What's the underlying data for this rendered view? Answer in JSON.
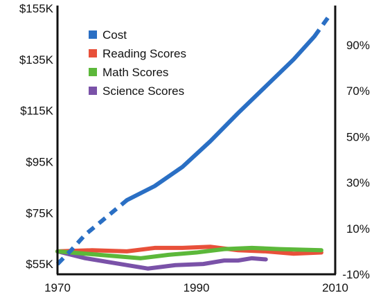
{
  "chart_data": {
    "type": "line",
    "title": "",
    "xlabel": "",
    "ylabel_left": "",
    "ylabel_right": "",
    "x_ticks": [
      "1970",
      "1990",
      "2010"
    ],
    "x_range": [
      1970,
      2010
    ],
    "left_axis": {
      "range": [
        51000,
        155000
      ],
      "ticks": [
        55000,
        75000,
        95000,
        115000,
        135000,
        155000
      ],
      "tick_labels": [
        "$55K",
        "$75K",
        "$95K",
        "$115K",
        "$135K",
        "$155K"
      ]
    },
    "right_axis": {
      "range": [
        -10,
        106
      ],
      "ticks": [
        -10,
        10,
        30,
        50,
        70,
        90
      ],
      "tick_labels": [
        "-10%",
        "10%",
        "30%",
        "50%",
        "70%",
        "90%"
      ]
    },
    "legend_position": "top-left",
    "grid": false,
    "series": [
      {
        "name": "Cost",
        "color": "#2a6fc4",
        "axis": "left",
        "x": [
          1970,
          1972,
          1974,
          1976,
          1978,
          1980,
          1984,
          1988,
          1992,
          1996,
          2000,
          2004,
          2007,
          2009
        ],
        "values": [
          55000,
          60500,
          66500,
          71000,
          75500,
          80000,
          85500,
          93000,
          103000,
          114000,
          124500,
          135000,
          144000,
          151500
        ],
        "dashed_segments": [
          [
            1970,
            1980
          ],
          [
            2007,
            2009
          ]
        ]
      },
      {
        "name": "Reading Scores",
        "color": "#e8503a",
        "axis": "right",
        "x": [
          1970,
          1975,
          1980,
          1984,
          1988,
          1992,
          1996,
          2000,
          2004,
          2008
        ],
        "values": [
          0,
          0.5,
          0,
          1.5,
          1.5,
          2,
          0.5,
          0,
          -1,
          -0.5
        ]
      },
      {
        "name": "Math Scores",
        "color": "#5cb83a",
        "axis": "right",
        "x": [
          1970,
          1974,
          1978,
          1982,
          1986,
          1990,
          1994,
          1998,
          2002,
          2008
        ],
        "values": [
          0,
          -1,
          -2,
          -3,
          -1.5,
          -0.5,
          1,
          1.5,
          1,
          0.5
        ]
      },
      {
        "name": "Science Scores",
        "color": "#7a52a8",
        "axis": "right",
        "x": [
          1970,
          1974,
          1978,
          1983,
          1987,
          1991,
          1994,
          1996,
          1998,
          2000
        ],
        "values": [
          0,
          -3,
          -5,
          -7.5,
          -6,
          -5.5,
          -4,
          -4,
          -3,
          -3.5
        ]
      }
    ]
  }
}
